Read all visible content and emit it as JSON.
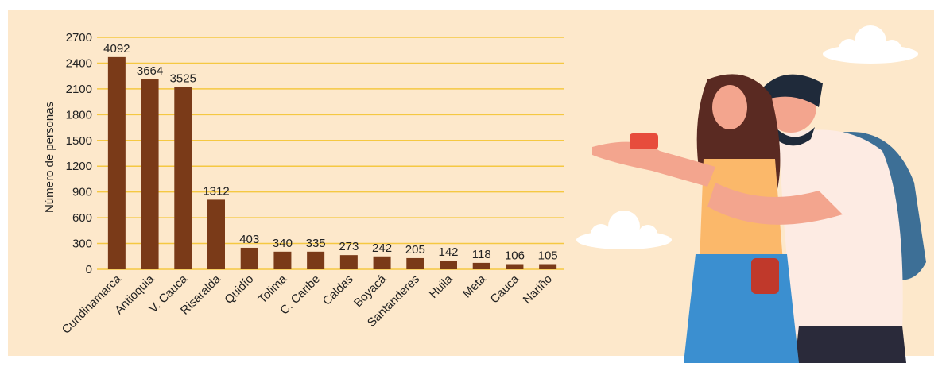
{
  "chart_data": {
    "type": "bar",
    "y_label": "Número de personas",
    "categories": [
      "Cundinamarca",
      "Antioquia",
      "V. Cauca",
      "Risaralda",
      "Quidío",
      "Tolima",
      "C. Caribe",
      "Caldas",
      "Boyacá",
      "Santanderes",
      "Huila",
      "Meta",
      "Cauca",
      "Nariño"
    ],
    "values": [
      2470,
      2210,
      2120,
      810,
      250,
      205,
      205,
      165,
      150,
      130,
      100,
      75,
      60,
      60
    ],
    "annotations": [
      "4092",
      "3664",
      "3525",
      "1312",
      "403",
      "340",
      "335",
      "273",
      "242",
      "205",
      "142",
      "118",
      "106",
      "105"
    ],
    "color": "#7a3a18",
    "ylim": [
      0,
      2700
    ],
    "yticks": [
      0,
      300,
      600,
      900,
      1200,
      1500,
      1800,
      2100,
      2400,
      2700
    ],
    "grid": true,
    "grid_color": "#f5c842"
  }
}
